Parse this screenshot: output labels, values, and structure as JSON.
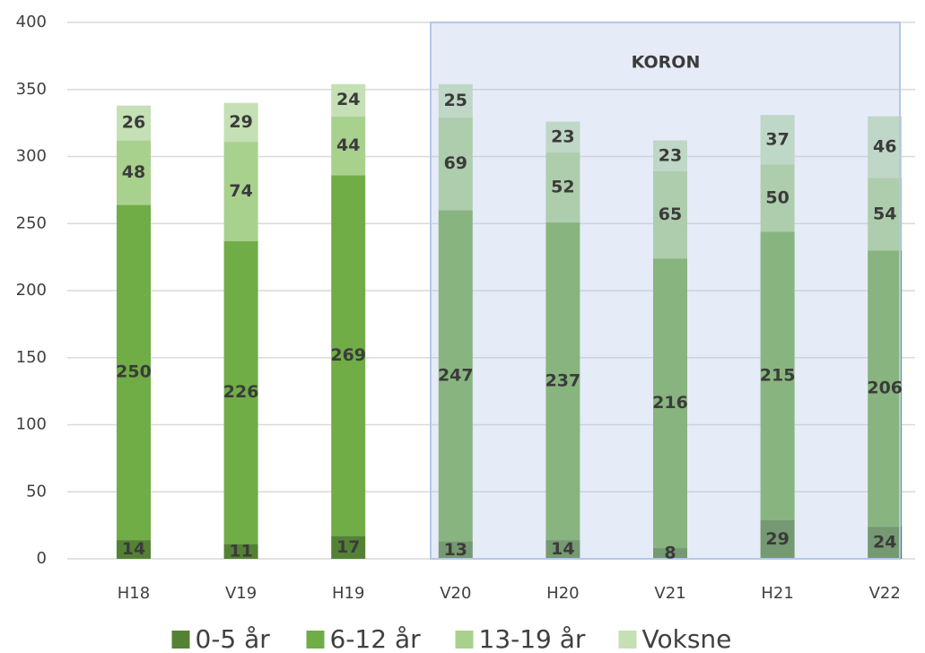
{
  "chart_data": {
    "type": "bar",
    "stacked": true,
    "annotation": "KORON",
    "categories": [
      "H18",
      "V19",
      "H19",
      "V20",
      "H20",
      "V21",
      "H21",
      "V22"
    ],
    "series": [
      {
        "name": "0-5 år",
        "color": "#548235",
        "values": [
          14,
          11,
          17,
          13,
          14,
          8,
          29,
          24
        ]
      },
      {
        "name": "6-12 år",
        "color": "#70ad47",
        "values": [
          250,
          226,
          269,
          247,
          237,
          216,
          215,
          206
        ]
      },
      {
        "name": "13-19 år",
        "color": "#a9d18e",
        "values": [
          48,
          74,
          44,
          69,
          52,
          65,
          50,
          54
        ]
      },
      {
        "name": "Voksne",
        "color": "#c5e0b4",
        "values": [
          26,
          29,
          24,
          25,
          23,
          23,
          37,
          46
        ]
      }
    ],
    "ylim": [
      0,
      400
    ],
    "yticks": [
      0,
      50,
      100,
      150,
      200,
      250,
      300,
      350,
      400
    ],
    "grid": true,
    "legend": "bottom"
  }
}
